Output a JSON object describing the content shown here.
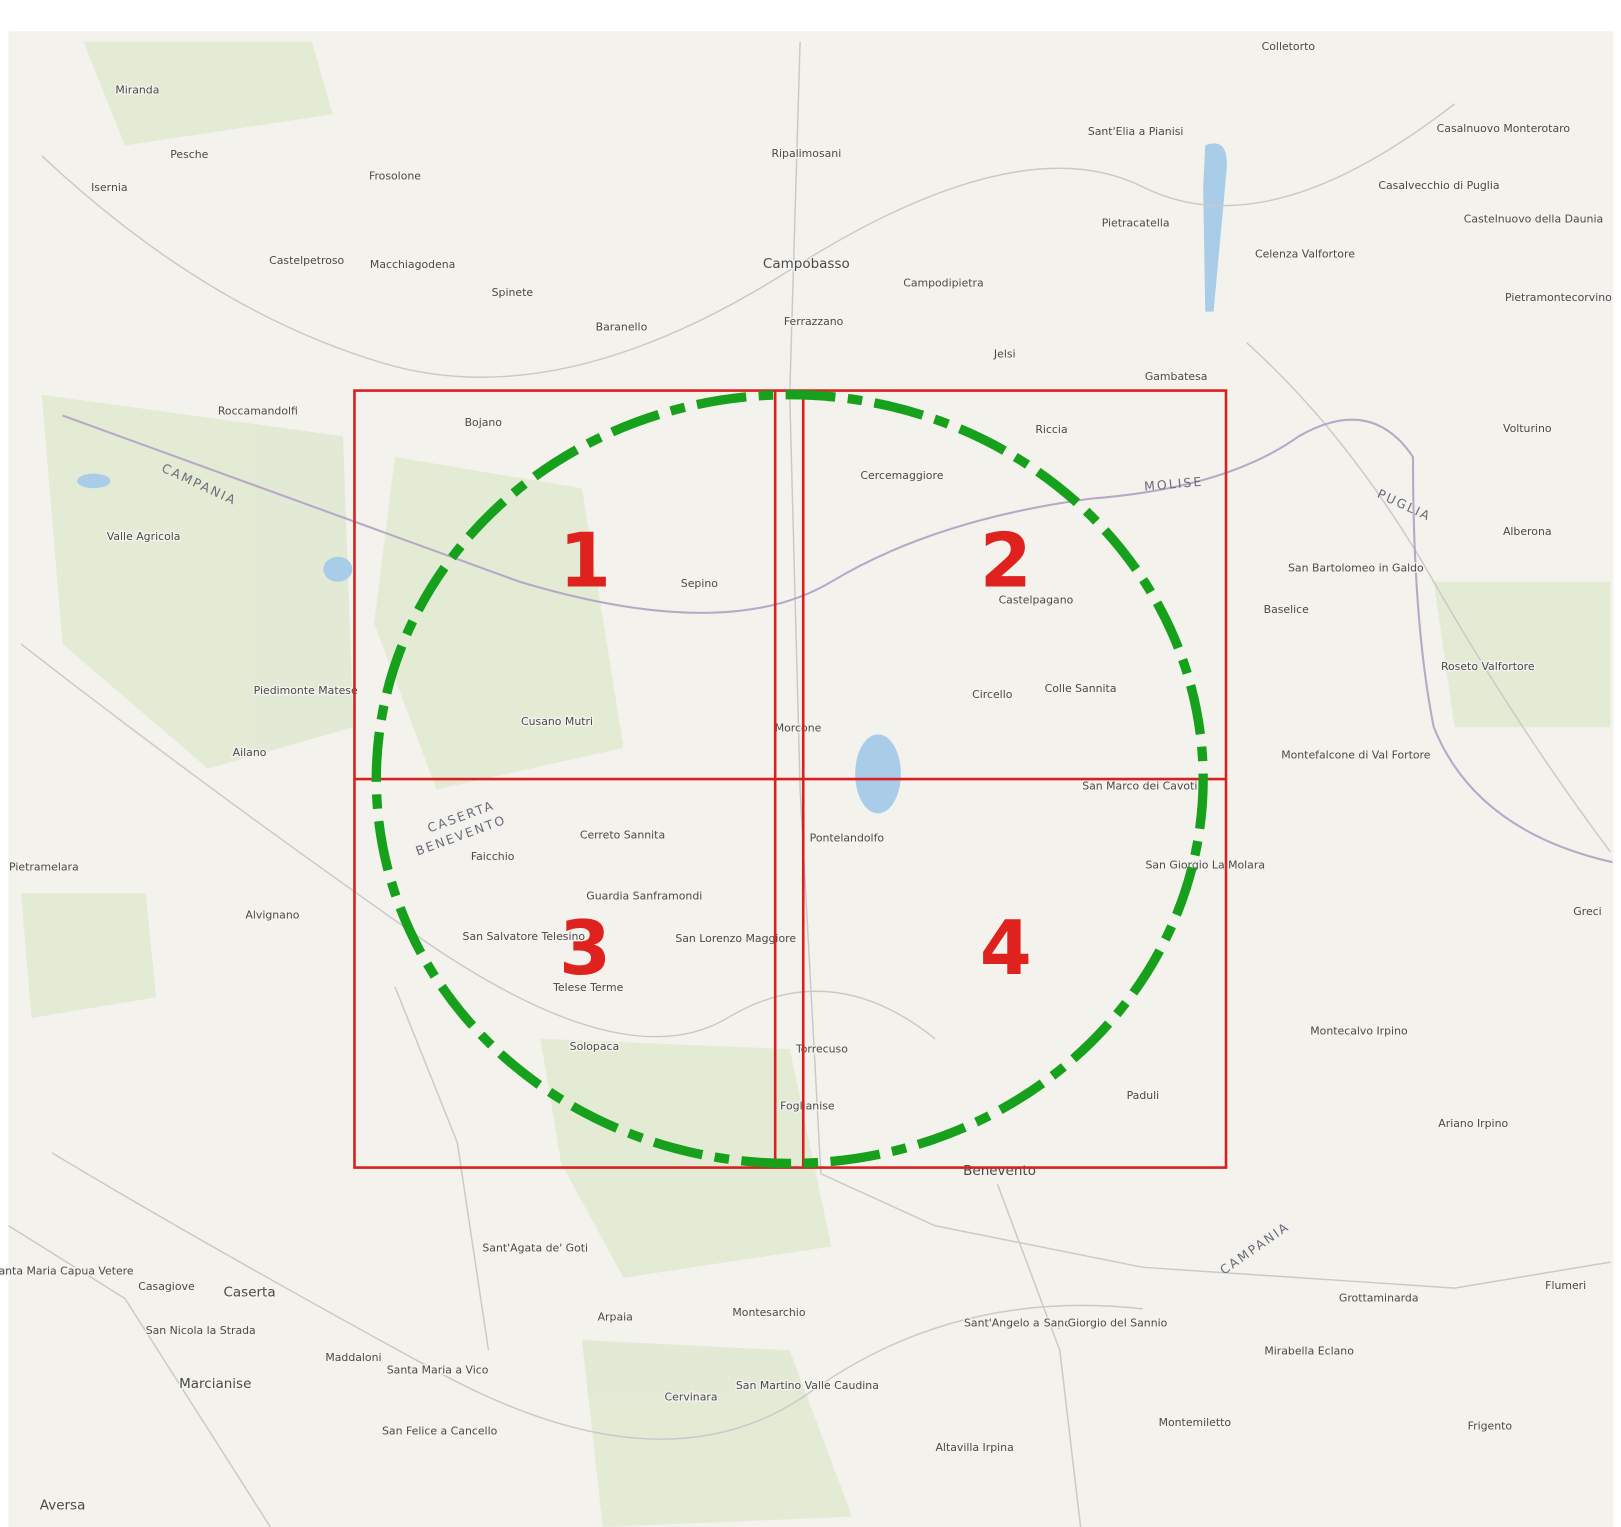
{
  "map": {
    "quadrants": [
      "1",
      "2",
      "3",
      "4"
    ],
    "places": [
      "Miranda",
      "Pesche",
      "Isernia",
      "Frosolone",
      "Castelpetroso",
      "Macchiagodena",
      "Spinete",
      "Baranello",
      "Campobasso",
      "Ferrazzano",
      "Campodipietra",
      "Ripalimosani",
      "Jelsi",
      "Gambatesa",
      "Pietracatella",
      "Sant'Elia a Pianisi",
      "Colletorto",
      "Casalnuovo Monterotaro",
      "Casalvecchio di Puglia",
      "Castelnuovo della Daunia",
      "Celenza Valfortore",
      "Pietramontecorvino",
      "Roccamandolfi",
      "Bojano",
      "Sepino",
      "Riccia",
      "Cercemaggiore",
      "Circello",
      "Colle Sannita",
      "Castelpagano",
      "Volturino",
      "Alberona",
      "San Bartolomeo in Galdo",
      "Baselice",
      "Roseto Valfortore",
      "Montefalcone di Val Fortore",
      "Valle Agricola",
      "Piedimonte Matese",
      "Cusano Mutri",
      "Ailano",
      "Pietramelara",
      "Alvignano",
      "Faicchio",
      "Cerreto Sannita",
      "Guardia Sanframondi",
      "San Salvatore Telesino",
      "San Lorenzo Maggiore",
      "Telese Terme",
      "Solopaca",
      "Morcone",
      "Pontelandolfo",
      "San Marco dei Cavoti",
      "San Giorgio La Molara",
      "Torrecuso",
      "Foglianise",
      "Paduli",
      "Montecalvo Irpino",
      "Ariano Irpino",
      "Benevento",
      "Sant'Agata de' Goti",
      "Santa Maria Capua Vetere",
      "Casagiove",
      "Caserta",
      "San Nicola la Strada",
      "Maddaloni",
      "Marcianise",
      "Santa Maria a Vico",
      "Arpaia",
      "Montesarchio",
      "Cervinara",
      "San Martino Valle Caudina",
      "San Felice a Cancello",
      "Altavilla Irpina",
      "Sant'Angelo a Cupolo",
      "San Giorgio del Sannio",
      "Montemiletto",
      "Mirabella Eclano",
      "Grottaminarda",
      "Frigento",
      "Flumeri",
      "Greci",
      "Aversa"
    ],
    "regions": [
      "CAMPANIA",
      "MOLISE",
      "PUGLIA",
      "CASERTA",
      "BENEVENTO",
      "CAMPANIA"
    ]
  }
}
